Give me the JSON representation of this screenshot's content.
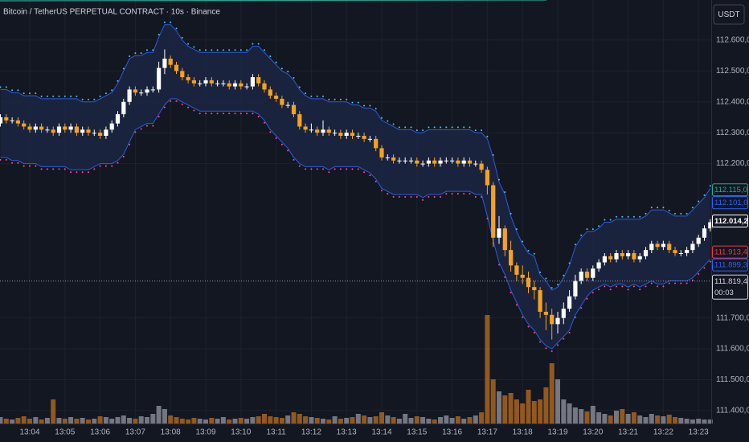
{
  "title": "Bitcoin / TetherUS PERPETUAL CONTRACT · 10s · Binance",
  "currency_button": "USDT",
  "chart_data": {
    "type": "candlestick",
    "categories": [
      null,
      null,
      null,
      null,
      null,
      "13:04",
      null,
      null,
      null,
      null,
      null,
      "13:05",
      null,
      null,
      null,
      null,
      null,
      "13:06",
      null,
      null,
      null,
      null,
      null,
      "13:07",
      null,
      null,
      null,
      null,
      null,
      "13:08",
      null,
      null,
      null,
      null,
      null,
      "13:09",
      null,
      null,
      null,
      null,
      null,
      "13:10",
      null,
      null,
      null,
      null,
      null,
      "13:11",
      null,
      null,
      null,
      null,
      null,
      "13:12",
      null,
      null,
      null,
      null,
      null,
      "13:13",
      null,
      null,
      null,
      null,
      null,
      "13:14",
      null,
      null,
      null,
      null,
      null,
      "13:15",
      null,
      null,
      null,
      null,
      null,
      "13:16",
      null,
      null,
      null,
      null,
      null,
      "13:17",
      null,
      null,
      null,
      null,
      null,
      "13:18",
      null,
      null,
      null,
      null,
      null,
      "13:19",
      null,
      null,
      null,
      null,
      null,
      "13:20",
      null,
      null,
      null,
      null,
      null,
      "13:21",
      null,
      null,
      null,
      null,
      null,
      "13:22",
      null,
      null,
      null,
      null,
      null,
      "13:23",
      null,
      null
    ],
    "candles": [
      [
        112.33,
        112.36,
        112.32,
        112.35
      ],
      [
        112.35,
        112.36,
        112.33,
        112.34
      ],
      [
        112.34,
        112.35,
        112.33,
        112.34
      ],
      [
        112.34,
        112.35,
        112.32,
        112.33
      ],
      [
        112.33,
        112.34,
        112.31,
        112.32
      ],
      [
        112.32,
        112.33,
        112.3,
        112.31
      ],
      [
        112.31,
        112.33,
        112.3,
        112.32
      ],
      [
        112.32,
        112.33,
        112.3,
        112.31
      ],
      [
        112.31,
        112.32,
        112.3,
        112.31
      ],
      [
        112.31,
        112.32,
        112.29,
        112.3
      ],
      [
        112.3,
        112.33,
        112.29,
        112.32
      ],
      [
        112.32,
        112.33,
        112.3,
        112.31
      ],
      [
        112.31,
        112.33,
        112.3,
        112.32
      ],
      [
        112.32,
        112.33,
        112.29,
        112.3
      ],
      [
        112.3,
        112.32,
        112.29,
        112.31
      ],
      [
        112.31,
        112.32,
        112.29,
        112.3
      ],
      [
        112.3,
        112.31,
        112.29,
        112.3
      ],
      [
        112.3,
        112.31,
        112.28,
        112.29
      ],
      [
        112.29,
        112.32,
        112.28,
        112.31
      ],
      [
        112.31,
        112.34,
        112.3,
        112.33
      ],
      [
        112.33,
        112.37,
        112.32,
        112.36
      ],
      [
        112.36,
        112.41,
        112.35,
        112.4
      ],
      [
        112.4,
        112.45,
        112.39,
        112.44
      ],
      [
        112.44,
        112.45,
        112.42,
        112.43
      ],
      [
        112.43,
        112.44,
        112.42,
        112.43
      ],
      [
        112.43,
        112.45,
        112.42,
        112.44
      ],
      [
        112.44,
        112.45,
        112.43,
        112.44
      ],
      [
        112.44,
        112.53,
        112.43,
        112.51
      ],
      [
        112.51,
        112.57,
        112.49,
        112.54
      ],
      [
        112.54,
        112.55,
        112.51,
        112.52
      ],
      [
        112.52,
        112.53,
        112.49,
        112.5
      ],
      [
        112.5,
        112.51,
        112.47,
        112.48
      ],
      [
        112.48,
        112.49,
        112.46,
        112.47
      ],
      [
        112.47,
        112.48,
        112.45,
        112.46
      ],
      [
        112.46,
        112.47,
        112.45,
        112.46
      ],
      [
        112.46,
        112.48,
        112.45,
        112.47
      ],
      [
        112.47,
        112.48,
        112.45,
        112.46
      ],
      [
        112.46,
        112.47,
        112.45,
        112.46
      ],
      [
        112.46,
        112.47,
        112.45,
        112.46
      ],
      [
        112.46,
        112.47,
        112.44,
        112.45
      ],
      [
        112.45,
        112.47,
        112.44,
        112.46
      ],
      [
        112.46,
        112.47,
        112.44,
        112.45
      ],
      [
        112.45,
        112.46,
        112.44,
        112.45
      ],
      [
        112.45,
        112.49,
        112.44,
        112.48
      ],
      [
        112.48,
        112.49,
        112.45,
        112.46
      ],
      [
        112.46,
        112.47,
        112.43,
        112.44
      ],
      [
        112.44,
        112.45,
        112.41,
        112.42
      ],
      [
        112.42,
        112.43,
        112.4,
        112.41
      ],
      [
        112.41,
        112.42,
        112.38,
        112.39
      ],
      [
        112.39,
        112.4,
        112.38,
        112.39
      ],
      [
        112.39,
        112.4,
        112.35,
        112.36
      ],
      [
        112.36,
        112.37,
        112.31,
        112.32
      ],
      [
        112.32,
        112.33,
        112.3,
        112.31
      ],
      [
        112.31,
        112.33,
        112.3,
        112.31
      ],
      [
        112.31,
        112.32,
        112.29,
        112.3
      ],
      [
        112.3,
        112.34,
        112.29,
        112.31
      ],
      [
        112.31,
        112.32,
        112.29,
        112.3
      ],
      [
        112.3,
        112.31,
        112.29,
        112.3
      ],
      [
        112.3,
        112.31,
        112.28,
        112.29
      ],
      [
        112.29,
        112.31,
        112.28,
        112.3
      ],
      [
        112.3,
        112.31,
        112.28,
        112.29
      ],
      [
        112.29,
        112.3,
        112.28,
        112.29
      ],
      [
        112.29,
        112.3,
        112.27,
        112.28
      ],
      [
        112.28,
        112.29,
        112.27,
        112.28
      ],
      [
        112.28,
        112.29,
        112.24,
        112.25
      ],
      [
        112.25,
        112.26,
        112.21,
        112.22
      ],
      [
        112.22,
        112.23,
        112.21,
        112.22
      ],
      [
        112.22,
        112.23,
        112.2,
        112.21
      ],
      [
        112.21,
        112.22,
        112.2,
        112.21
      ],
      [
        112.21,
        112.22,
        112.2,
        112.21
      ],
      [
        112.21,
        112.22,
        112.2,
        112.21
      ],
      [
        112.21,
        112.22,
        112.19,
        112.2
      ],
      [
        112.2,
        112.21,
        112.19,
        112.2
      ],
      [
        112.2,
        112.22,
        112.19,
        112.21
      ],
      [
        112.21,
        112.22,
        112.19,
        112.2
      ],
      [
        112.2,
        112.22,
        112.19,
        112.21
      ],
      [
        112.21,
        112.22,
        112.2,
        112.21
      ],
      [
        112.21,
        112.22,
        112.2,
        112.21
      ],
      [
        112.21,
        112.22,
        112.19,
        112.2
      ],
      [
        112.2,
        112.22,
        112.19,
        112.21
      ],
      [
        112.21,
        112.22,
        112.19,
        112.2
      ],
      [
        112.2,
        112.21,
        112.19,
        112.2
      ],
      [
        112.2,
        112.21,
        112.17,
        112.18
      ],
      [
        112.18,
        112.19,
        112.1,
        112.13
      ],
      [
        112.13,
        112.14,
        111.93,
        111.96
      ],
      [
        111.96,
        112.03,
        111.94,
        111.99
      ],
      [
        111.99,
        112.0,
        111.9,
        111.92
      ],
      [
        111.92,
        111.95,
        111.85,
        111.87
      ],
      [
        111.87,
        111.88,
        111.82,
        111.84
      ],
      [
        111.84,
        111.87,
        111.81,
        111.83
      ],
      [
        111.83,
        111.85,
        111.78,
        111.8
      ],
      [
        111.8,
        111.82,
        111.76,
        111.79
      ],
      [
        111.79,
        111.8,
        111.7,
        111.72
      ],
      [
        111.72,
        111.75,
        111.66,
        111.71
      ],
      [
        111.71,
        111.73,
        111.63,
        111.68
      ],
      [
        111.68,
        111.72,
        111.65,
        111.7
      ],
      [
        111.7,
        111.75,
        111.68,
        111.73
      ],
      [
        111.73,
        111.79,
        111.72,
        111.77
      ],
      [
        111.77,
        111.84,
        111.76,
        111.82
      ],
      [
        111.82,
        111.86,
        111.81,
        111.85
      ],
      [
        111.85,
        111.86,
        111.82,
        111.83
      ],
      [
        111.83,
        111.87,
        111.82,
        111.86
      ],
      [
        111.86,
        111.89,
        111.85,
        111.88
      ],
      [
        111.88,
        111.91,
        111.87,
        111.9
      ],
      [
        111.9,
        111.91,
        111.88,
        111.89
      ],
      [
        111.89,
        111.92,
        111.88,
        111.91
      ],
      [
        111.91,
        111.92,
        111.89,
        111.9
      ],
      [
        111.9,
        111.92,
        111.89,
        111.91
      ],
      [
        111.91,
        111.92,
        111.88,
        111.89
      ],
      [
        111.89,
        111.91,
        111.88,
        111.9
      ],
      [
        111.9,
        111.93,
        111.89,
        111.92
      ],
      [
        111.92,
        111.95,
        111.91,
        111.94
      ],
      [
        111.94,
        111.95,
        111.92,
        111.93
      ],
      [
        111.93,
        111.95,
        111.92,
        111.94
      ],
      [
        111.94,
        111.95,
        111.91,
        111.92
      ],
      [
        111.92,
        111.93,
        111.9,
        111.91
      ],
      [
        111.91,
        111.92,
        111.9,
        111.91
      ],
      [
        111.91,
        111.93,
        111.9,
        111.92
      ],
      [
        111.92,
        111.95,
        111.91,
        111.94
      ],
      [
        111.94,
        111.97,
        111.93,
        111.96
      ],
      [
        111.96,
        112.0,
        111.95,
        111.99
      ],
      [
        111.99,
        112.02,
        111.98,
        112.01
      ]
    ],
    "volume": [
      8,
      6,
      5,
      7,
      9,
      6,
      8,
      5,
      7,
      30,
      7,
      6,
      8,
      6,
      7,
      5,
      6,
      9,
      8,
      6,
      8,
      10,
      7,
      6,
      9,
      8,
      12,
      22,
      18,
      10,
      8,
      6,
      5,
      7,
      6,
      5,
      7,
      6,
      8,
      5,
      6,
      7,
      6,
      8,
      9,
      12,
      9,
      8,
      7,
      10,
      14,
      12,
      9,
      8,
      7,
      6,
      5,
      9,
      6,
      7,
      8,
      12,
      10,
      8,
      9,
      14,
      10,
      8,
      6,
      12,
      7,
      9,
      8,
      6,
      5,
      8,
      10,
      7,
      9,
      6,
      8,
      10,
      14,
      135,
      55,
      40,
      35,
      38,
      30,
      25,
      42,
      28,
      30,
      45,
      75,
      55,
      30,
      25,
      20,
      18,
      15,
      22,
      14,
      12,
      10,
      16,
      18,
      12,
      14,
      10,
      8,
      12,
      10,
      9,
      11,
      8,
      7,
      6,
      5,
      6,
      5,
      5
    ],
    "upper_band": [
      112.44,
      112.44,
      112.43,
      112.43,
      112.42,
      112.42,
      112.42,
      112.41,
      112.41,
      112.41,
      112.41,
      112.41,
      112.41,
      112.41,
      112.4,
      112.4,
      112.4,
      112.41,
      112.42,
      112.43,
      112.46,
      112.5,
      112.54,
      112.55,
      112.55,
      112.56,
      112.56,
      112.61,
      112.65,
      112.65,
      112.63,
      112.6,
      112.58,
      112.57,
      112.56,
      112.56,
      112.56,
      112.56,
      112.56,
      112.56,
      112.56,
      112.56,
      112.56,
      112.58,
      112.58,
      112.56,
      112.54,
      112.52,
      112.5,
      112.49,
      112.47,
      112.44,
      112.42,
      112.41,
      112.41,
      112.41,
      112.4,
      112.4,
      112.4,
      112.4,
      112.39,
      112.39,
      112.38,
      112.38,
      112.37,
      112.34,
      112.33,
      112.32,
      112.31,
      112.31,
      112.31,
      112.3,
      112.3,
      112.31,
      112.31,
      112.31,
      112.31,
      112.31,
      112.31,
      112.31,
      112.31,
      112.3,
      112.3,
      112.28,
      112.22,
      112.14,
      112.1,
      112.03,
      111.98,
      111.94,
      111.91,
      111.9,
      111.84,
      111.82,
      111.79,
      111.8,
      111.83,
      111.87,
      111.93,
      111.96,
      111.98,
      111.98,
      111.99,
      112.01,
      112.01,
      112.02,
      112.02,
      112.02,
      112.02,
      112.02,
      112.03,
      112.05,
      112.05,
      112.05,
      112.04,
      112.03,
      112.03,
      112.03,
      112.05,
      112.07,
      112.09,
      112.12
    ],
    "lower_band": [
      112.22,
      112.22,
      112.21,
      112.21,
      112.2,
      112.2,
      112.2,
      112.19,
      112.19,
      112.19,
      112.19,
      112.19,
      112.18,
      112.18,
      112.18,
      112.18,
      112.19,
      112.2,
      112.2,
      112.2,
      112.21,
      112.23,
      112.27,
      112.31,
      112.32,
      112.33,
      112.33,
      112.36,
      112.39,
      112.41,
      112.41,
      112.4,
      112.39,
      112.38,
      112.37,
      112.37,
      112.37,
      112.37,
      112.37,
      112.37,
      112.37,
      112.37,
      112.37,
      112.37,
      112.36,
      112.34,
      112.31,
      112.29,
      112.27,
      112.25,
      112.22,
      112.2,
      112.19,
      112.19,
      112.19,
      112.19,
      112.18,
      112.19,
      112.19,
      112.19,
      112.19,
      112.19,
      112.18,
      112.17,
      112.15,
      112.12,
      112.11,
      112.1,
      112.1,
      112.1,
      112.1,
      112.1,
      112.09,
      112.1,
      112.1,
      112.1,
      112.11,
      112.11,
      112.11,
      112.11,
      112.11,
      112.1,
      112.1,
      112.03,
      111.95,
      111.88,
      111.84,
      111.79,
      111.75,
      111.71,
      111.68,
      111.66,
      111.63,
      111.61,
      111.6,
      111.62,
      111.64,
      111.66,
      111.71,
      111.74,
      111.77,
      111.79,
      111.8,
      111.81,
      111.8,
      111.81,
      111.81,
      111.8,
      111.81,
      111.8,
      111.81,
      111.82,
      111.81,
      111.81,
      111.82,
      111.82,
      111.82,
      111.82,
      111.83,
      111.85,
      111.87,
      111.89
    ],
    "up_color": "#ffffff",
    "down_color": "#f7a21b",
    "band_line_color": "#2f5bd8",
    "band_fill": "#1b2642",
    "upper_dot_color": "#4fc3f7",
    "lower_dot_color": "#ff4d8d",
    "ylim": [
      111.358,
      112.73
    ],
    "yticks": [
      {
        "value": 112.6,
        "label": "112.600,0"
      },
      {
        "value": 112.5,
        "label": "112.500,0"
      },
      {
        "value": 112.4,
        "label": "112.400,0"
      },
      {
        "value": 112.3,
        "label": "112.300,0"
      },
      {
        "value": 112.2,
        "label": "112.200,0"
      },
      {
        "value": 111.7,
        "label": "111.700,0"
      },
      {
        "value": 111.6,
        "label": "111.600,0"
      },
      {
        "value": 111.5,
        "label": "111.500,0"
      },
      {
        "value": 111.4,
        "label": "111.400,0"
      }
    ],
    "grid": true,
    "price_labels": [
      {
        "value": 112.115,
        "label": "112.115,0",
        "color": "#22ab94"
      },
      {
        "value": 112.101,
        "label": "112.101,0",
        "color": "#2962ff"
      },
      {
        "value": 112.0142,
        "label": "112.014,2",
        "color": "#ffffff"
      },
      {
        "value": 111.9134,
        "label": "111.913,4",
        "color": "#f23645"
      },
      {
        "value": 111.8993,
        "label": "111.899,3",
        "color": "#2962ff"
      },
      {
        "value": 111.8194,
        "label": "111.819,4",
        "color": "#d1d4dc",
        "sublabel": "00:03"
      }
    ]
  }
}
